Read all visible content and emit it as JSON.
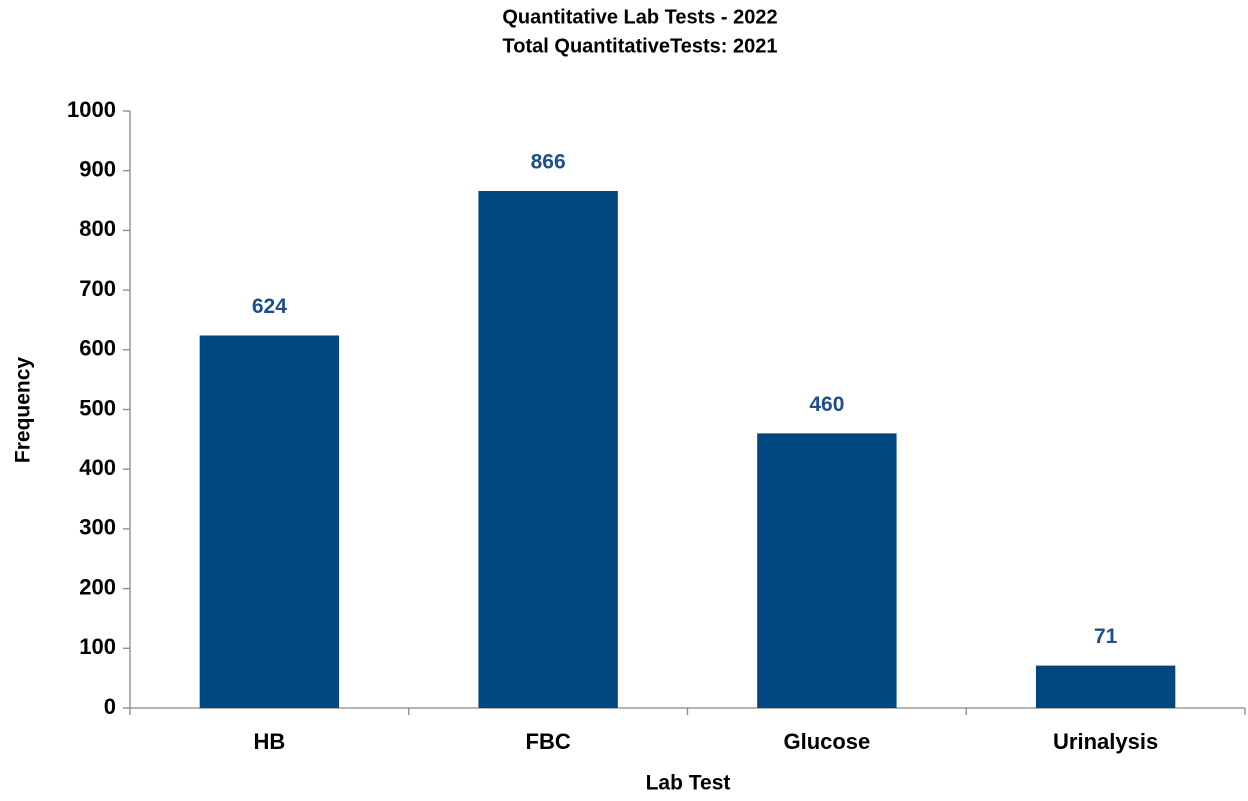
{
  "chart_data": {
    "type": "bar",
    "title": "Quantitative Lab Tests - 2022",
    "subtitle": "Total QuantitativeTests: 2021",
    "xlabel": "Lab Test",
    "ylabel": "Frequency",
    "categories": [
      "HB",
      "FBC",
      "Glucose",
      "Urinalysis"
    ],
    "values": [
      624,
      866,
      460,
      71
    ],
    "color": "#00467f",
    "label_color": "#1f4e8c",
    "ylim": [
      0,
      1000
    ],
    "yticks": [
      0,
      100,
      200,
      300,
      400,
      500,
      600,
      700,
      800,
      900,
      1000
    ],
    "grid": false
  }
}
